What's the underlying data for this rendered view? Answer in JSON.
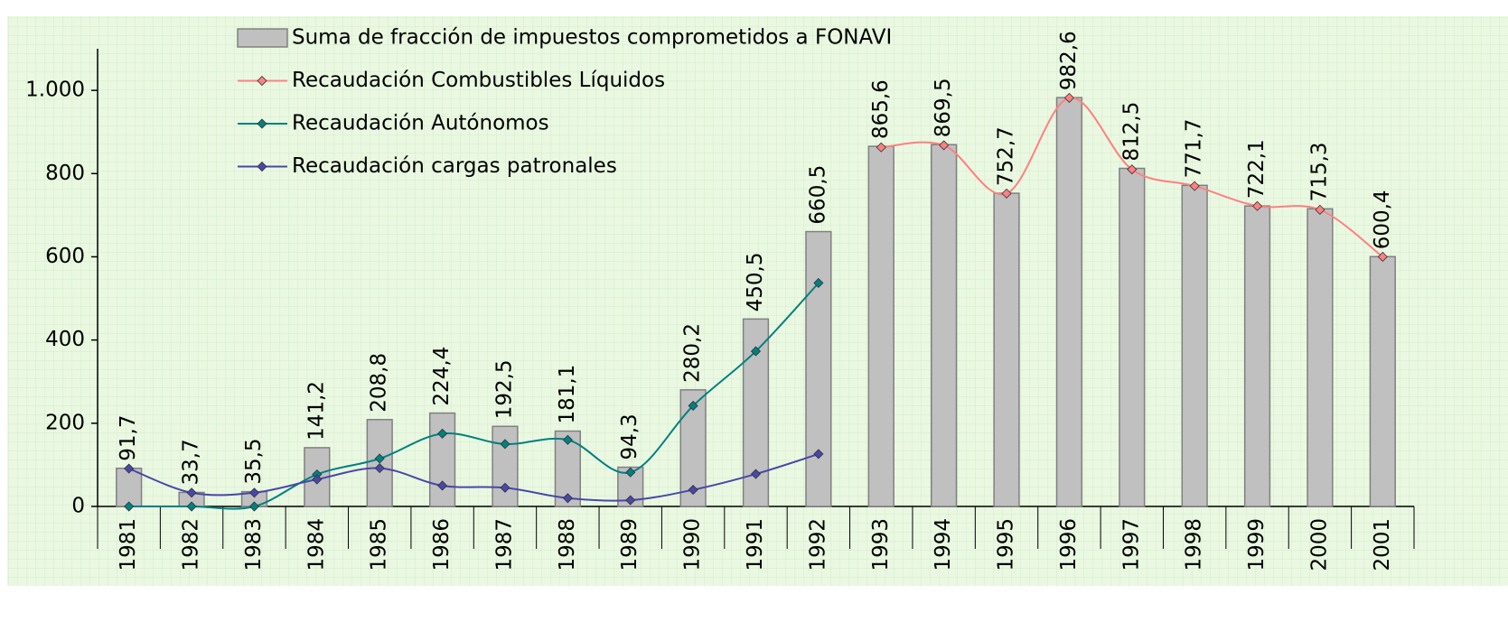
{
  "chart_data": {
    "type": "bar",
    "categories": [
      "1981",
      "1982",
      "1983",
      "1984",
      "1985",
      "1986",
      "1987",
      "1988",
      "1989",
      "1990",
      "1991",
      "1992",
      "1993",
      "1994",
      "1995",
      "1996",
      "1997",
      "1998",
      "1999",
      "2000",
      "2001"
    ],
    "series": [
      {
        "name": "Suma de fracción de impuestos comprometidos a FONAVI",
        "type": "bar",
        "color": "#c0c0c0",
        "values": [
          91.7,
          33.7,
          35.5,
          141.2,
          208.8,
          224.4,
          192.5,
          181.1,
          94.3,
          280.2,
          450.5,
          660.5,
          865.6,
          869.5,
          752.7,
          982.6,
          812.5,
          771.7,
          722.1,
          715.3,
          600.4
        ],
        "value_labels": [
          "91,7",
          "33,7",
          "35,5",
          "141,2",
          "208,8",
          "224,4",
          "192,5",
          "181,1",
          "94,3",
          "280,2",
          "450,5",
          "660,5",
          "865,6",
          "869,5",
          "752,7",
          "982,6",
          "812,5",
          "771,7",
          "722,1",
          "715,3",
          "600,4"
        ]
      },
      {
        "name": "Recaudación Combustibles Líquidos",
        "type": "line",
        "color": "#ff8080",
        "values": [
          null,
          null,
          null,
          null,
          null,
          null,
          null,
          null,
          null,
          null,
          null,
          null,
          863,
          868,
          752,
          982,
          810,
          770,
          722,
          713,
          600
        ]
      },
      {
        "name": "Recaudación Autónomos",
        "type": "line",
        "color": "#008080",
        "values": [
          0,
          0,
          0,
          77,
          115,
          175,
          150,
          160,
          82,
          242,
          373,
          537,
          null,
          null,
          null,
          null,
          null,
          null,
          null,
          null,
          null
        ]
      },
      {
        "name": "Recaudación cargas patronales",
        "type": "line",
        "color": "#4848a8",
        "values": [
          91,
          33,
          33,
          65,
          92,
          50,
          45,
          20,
          15,
          40,
          78,
          126,
          null,
          null,
          null,
          null,
          null,
          null,
          null,
          null,
          null
        ]
      }
    ],
    "ylim": [
      0,
      1100
    ],
    "yticks": [
      0,
      200,
      400,
      600,
      800,
      {
        "value": 1000,
        "label": "1.000"
      }
    ],
    "grid": false
  }
}
